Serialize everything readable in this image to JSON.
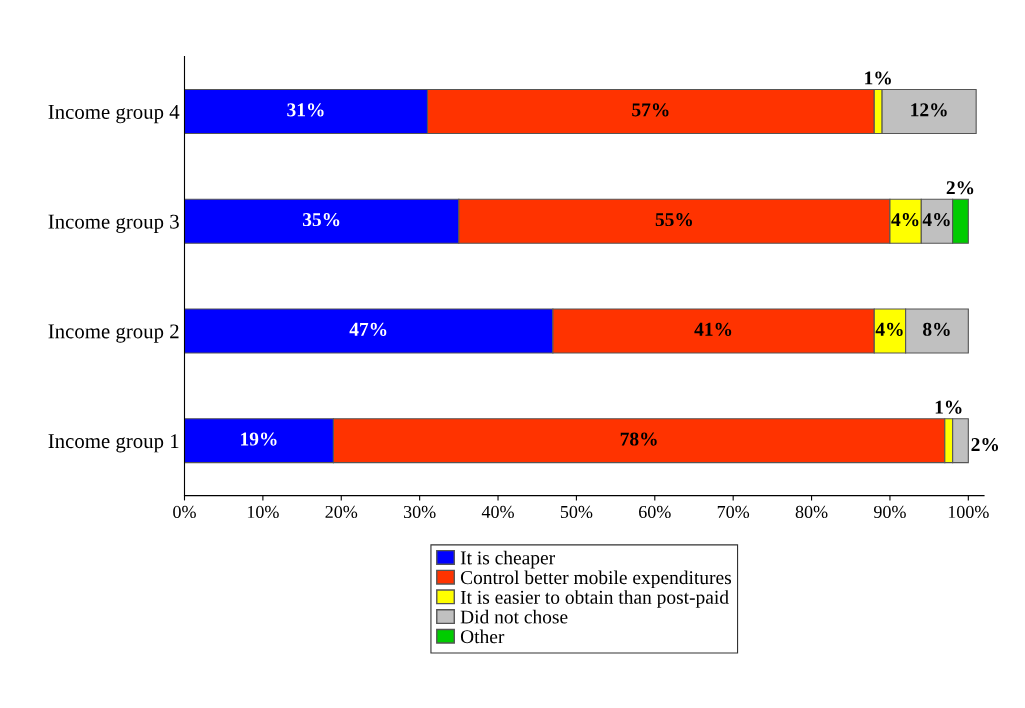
{
  "chart_data": {
    "type": "bar",
    "orientation": "horizontal",
    "stacked": true,
    "categories": [
      "Income group 4",
      "Income group 3",
      "Income group 2",
      "Income group 1"
    ],
    "series": [
      {
        "name": "It is cheaper",
        "color": "#0000ff",
        "values": [
          31,
          35,
          47,
          19
        ],
        "value_labels": [
          "31%",
          "35%",
          "47%",
          "19%"
        ]
      },
      {
        "name": "Control better mobile expenditures",
        "color": "#ff3300",
        "values": [
          57,
          55,
          41,
          78
        ],
        "value_labels": [
          "57%",
          "55%",
          "41%",
          "78%"
        ]
      },
      {
        "name": "It is easier to obtain than post-paid",
        "color": "#ffff00",
        "values": [
          1,
          4,
          4,
          1
        ],
        "value_labels": [
          "1%",
          "4%",
          "4%",
          "1%"
        ]
      },
      {
        "name": "Did not chose",
        "color": "#c0c0c0",
        "values": [
          12,
          4,
          8,
          2
        ],
        "value_labels": [
          "12%",
          "4%",
          "8%",
          "2%"
        ]
      },
      {
        "name": "Other",
        "color": "#00cc00",
        "values": [
          null,
          2,
          null,
          null
        ],
        "value_labels": [
          null,
          "2%",
          null,
          null
        ]
      }
    ],
    "xlim": [
      0,
      102
    ],
    "xticks": [
      {
        "value": 0,
        "label": "0%"
      },
      {
        "value": 10,
        "label": "10%"
      },
      {
        "value": 20,
        "label": "20%"
      },
      {
        "value": 30,
        "label": "30%"
      },
      {
        "value": 40,
        "label": "40%"
      },
      {
        "value": 50,
        "label": "50%"
      },
      {
        "value": 60,
        "label": "60%"
      },
      {
        "value": 70,
        "label": "70%"
      },
      {
        "value": 80,
        "label": "80%"
      },
      {
        "value": 90,
        "label": "90%"
      },
      {
        "value": 100,
        "label": "100%"
      }
    ],
    "grid": false,
    "legend": "bottom"
  }
}
